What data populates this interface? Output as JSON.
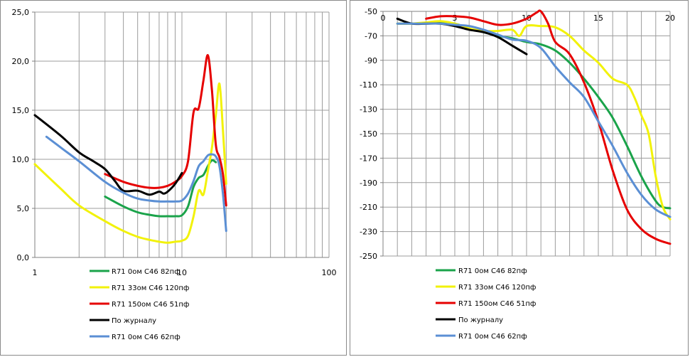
{
  "colors": {
    "grid": "#9c9c9c",
    "axis": "#808080",
    "green": "#1aa34a",
    "yellow": "#f2f20a",
    "red": "#e60000",
    "black": "#000000",
    "blue": "#5b8fd4"
  },
  "chart_data": [
    {
      "type": "line",
      "xscale": "log",
      "xlim": [
        1,
        100
      ],
      "ylim": [
        0,
        25
      ],
      "x_ticks": [
        "1",
        "10",
        "100"
      ],
      "y_ticks": [
        "0,0",
        "5,0",
        "10,0",
        "15,0",
        "20,0",
        "25,0"
      ],
      "grid": true,
      "legend": "bottom",
      "series": [
        {
          "name": "R71 0ом C46 82пф",
          "color": "green",
          "points": [
            [
              3,
              6.2
            ],
            [
              4,
              5.2
            ],
            [
              5,
              4.6
            ],
            [
              6,
              4.35
            ],
            [
              7,
              4.2
            ],
            [
              8,
              4.2
            ],
            [
              9,
              4.2
            ],
            [
              10,
              4.3
            ],
            [
              11,
              5.2
            ],
            [
              12,
              7.2
            ],
            [
              13,
              8.1
            ],
            [
              14,
              8.4
            ],
            [
              15,
              9.3
            ],
            [
              16,
              9.9
            ],
            [
              17,
              9.7
            ]
          ]
        },
        {
          "name": "R71 33ом C46 120пф",
          "color": "yellow",
          "points": [
            [
              1,
              9.5
            ],
            [
              1.5,
              7.0
            ],
            [
              2,
              5.3
            ],
            [
              3,
              3.7
            ],
            [
              4,
              2.7
            ],
            [
              5,
              2.1
            ],
            [
              6,
              1.8
            ],
            [
              7,
              1.6
            ],
            [
              8,
              1.5
            ],
            [
              9,
              1.6
            ],
            [
              10,
              1.7
            ],
            [
              11,
              2.2
            ],
            [
              12,
              4.2
            ],
            [
              13,
              6.8
            ],
            [
              14,
              6.4
            ],
            [
              15,
              8.8
            ],
            [
              16,
              11.2
            ],
            [
              17,
              14.5
            ],
            [
              18,
              17.7
            ],
            [
              19,
              13.0
            ],
            [
              20,
              7.5
            ]
          ]
        },
        {
          "name": "R71 150ом C46 51пф",
          "color": "red",
          "points": [
            [
              3,
              8.5
            ],
            [
              4,
              7.7
            ],
            [
              5,
              7.3
            ],
            [
              6,
              7.1
            ],
            [
              7,
              7.1
            ],
            [
              8,
              7.3
            ],
            [
              9,
              7.7
            ],
            [
              10,
              8.3
            ],
            [
              11,
              9.8
            ],
            [
              12,
              14.8
            ],
            [
              13,
              15.2
            ],
            [
              14,
              18.0
            ],
            [
              15,
              20.6
            ],
            [
              16,
              17.0
            ],
            [
              17,
              11.5
            ],
            [
              18,
              10.2
            ],
            [
              19,
              8.5
            ],
            [
              20,
              5.3
            ]
          ]
        },
        {
          "name": "По журналу",
          "color": "black",
          "points": [
            [
              1,
              14.5
            ],
            [
              1.5,
              12.4
            ],
            [
              2,
              10.7
            ],
            [
              2.5,
              9.8
            ],
            [
              3,
              9.0
            ],
            [
              3.5,
              7.8
            ],
            [
              4,
              6.8
            ],
            [
              5,
              6.8
            ],
            [
              6,
              6.4
            ],
            [
              7,
              6.7
            ],
            [
              7.5,
              6.5
            ],
            [
              8,
              6.7
            ],
            [
              9,
              7.5
            ],
            [
              10,
              8.6
            ]
          ]
        },
        {
          "name": "R71 0ом C46 62пф",
          "color": "blue",
          "points": [
            [
              1.2,
              12.3
            ],
            [
              1.5,
              11.2
            ],
            [
              2,
              9.8
            ],
            [
              3,
              7.7
            ],
            [
              4,
              6.6
            ],
            [
              5,
              6.0
            ],
            [
              6,
              5.8
            ],
            [
              7,
              5.7
            ],
            [
              8,
              5.7
            ],
            [
              9,
              5.7
            ],
            [
              10,
              5.8
            ],
            [
              11,
              6.5
            ],
            [
              12,
              7.8
            ],
            [
              13,
              9.3
            ],
            [
              14,
              9.8
            ],
            [
              15,
              10.4
            ],
            [
              16,
              10.5
            ],
            [
              17,
              10.3
            ],
            [
              18,
              9.3
            ],
            [
              19,
              6.5
            ],
            [
              20,
              2.7
            ]
          ]
        }
      ]
    },
    {
      "type": "line",
      "xscale": "linear",
      "xlim": [
        0,
        20
      ],
      "ylim": [
        -250,
        -50
      ],
      "x_ticks": [
        "0",
        "5",
        "10",
        "15",
        "20"
      ],
      "y_ticks": [
        "-50",
        "-70",
        "-90",
        "-110",
        "-130",
        "-150",
        "-170",
        "-190",
        "-210",
        "-230",
        "-250"
      ],
      "grid": true,
      "legend": "bottom",
      "series": [
        {
          "name": "R71 0ом C46 82пф",
          "color": "green",
          "points": [
            [
              1,
              -60
            ],
            [
              2,
              -60
            ],
            [
              3,
              -60
            ],
            [
              4,
              -59
            ],
            [
              5,
              -60
            ],
            [
              6,
              -64
            ],
            [
              7,
              -67
            ],
            [
              8,
              -70
            ],
            [
              9,
              -72
            ],
            [
              10,
              -75
            ],
            [
              11,
              -77
            ],
            [
              12,
              -82
            ],
            [
              13,
              -92
            ],
            [
              14,
              -105
            ],
            [
              15,
              -120
            ],
            [
              16,
              -137
            ],
            [
              17,
              -160
            ],
            [
              18,
              -185
            ],
            [
              19,
              -205
            ],
            [
              19.5,
              -210
            ],
            [
              20,
              -211
            ]
          ]
        },
        {
          "name": "R71 33ом C46 120пф",
          "color": "yellow",
          "points": [
            [
              1,
              -60
            ],
            [
              2,
              -60
            ],
            [
              3,
              -59
            ],
            [
              4,
              -58
            ],
            [
              5,
              -60
            ],
            [
              6,
              -64
            ],
            [
              7,
              -66
            ],
            [
              8,
              -66
            ],
            [
              9,
              -65
            ],
            [
              9.5,
              -70
            ],
            [
              10,
              -62
            ],
            [
              11,
              -62
            ],
            [
              12,
              -63
            ],
            [
              13,
              -70
            ],
            [
              14,
              -82
            ],
            [
              15,
              -92
            ],
            [
              16,
              -105
            ],
            [
              17,
              -110
            ],
            [
              17.5,
              -120
            ],
            [
              18,
              -135
            ],
            [
              18.5,
              -150
            ],
            [
              19,
              -185
            ],
            [
              19.5,
              -210
            ],
            [
              20,
              -220
            ]
          ]
        },
        {
          "name": "R71 150ом C46 51пф",
          "color": "red",
          "points": [
            [
              3,
              -56
            ],
            [
              4,
              -54
            ],
            [
              5,
              -54
            ],
            [
              6,
              -55
            ],
            [
              7,
              -58
            ],
            [
              8,
              -61
            ],
            [
              9,
              -60
            ],
            [
              10,
              -56
            ],
            [
              10.7,
              -51
            ],
            [
              11,
              -50
            ],
            [
              11.5,
              -60
            ],
            [
              12,
              -75
            ],
            [
              13,
              -85
            ],
            [
              14,
              -108
            ],
            [
              15,
              -140
            ],
            [
              16,
              -180
            ],
            [
              17,
              -212
            ],
            [
              18,
              -228
            ],
            [
              19,
              -236
            ],
            [
              20,
              -240
            ]
          ]
        },
        {
          "name": "По журналу",
          "color": "black",
          "points": [
            [
              1,
              -56
            ],
            [
              2,
              -60
            ],
            [
              3,
              -60
            ],
            [
              4,
              -60
            ],
            [
              5,
              -62
            ],
            [
              6,
              -65
            ],
            [
              7,
              -67
            ],
            [
              8,
              -71
            ],
            [
              9,
              -78
            ],
            [
              10,
              -85
            ]
          ]
        },
        {
          "name": "R71 0ом C46 62пф",
          "color": "blue",
          "points": [
            [
              1,
              -60
            ],
            [
              2,
              -60
            ],
            [
              3,
              -60
            ],
            [
              4,
              -60
            ],
            [
              5,
              -61
            ],
            [
              6,
              -62
            ],
            [
              7,
              -65
            ],
            [
              8,
              -69
            ],
            [
              9,
              -73
            ],
            [
              10,
              -74
            ],
            [
              11,
              -80
            ],
            [
              12,
              -95
            ],
            [
              13,
              -108
            ],
            [
              14,
              -120
            ],
            [
              15,
              -140
            ],
            [
              16,
              -160
            ],
            [
              17,
              -182
            ],
            [
              18,
              -200
            ],
            [
              19,
              -212
            ],
            [
              20,
              -218
            ]
          ]
        }
      ]
    }
  ]
}
